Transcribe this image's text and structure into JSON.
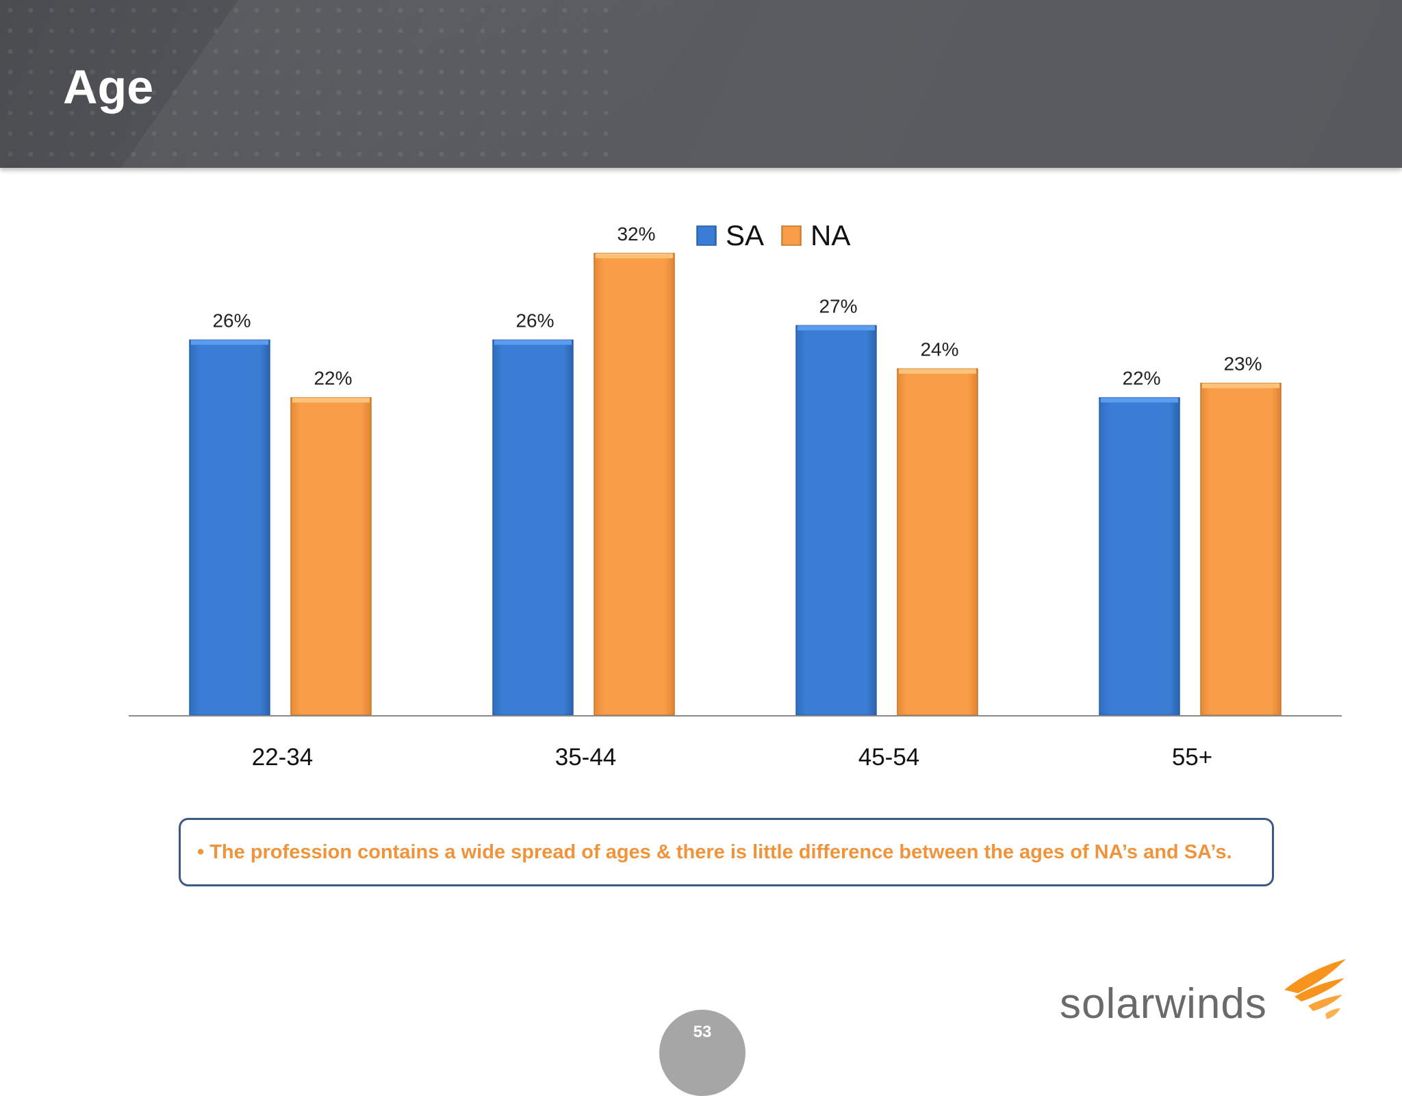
{
  "slide": {
    "title": "Age",
    "callout": "• The profession contains a wide spread of ages & there is little difference between the ages of NA’s and SA’s.",
    "page_number": "53",
    "logo_text": "solarwinds",
    "colors": {
      "sa": "#3a7dd4",
      "na": "#f99d48",
      "callout_text": "#f0943c",
      "callout_border": "#3b5a86"
    }
  },
  "chart_data": {
    "type": "bar",
    "title": "",
    "xlabel": "",
    "ylabel": "",
    "categories": [
      "22-34",
      "35-44",
      "45-54",
      "55+"
    ],
    "series": [
      {
        "name": "SA",
        "values": [
          26,
          26,
          27,
          22
        ],
        "labels": [
          "26%",
          "26%",
          "27%",
          "22%"
        ]
      },
      {
        "name": "NA",
        "values": [
          22,
          32,
          24,
          23
        ],
        "labels": [
          "22%",
          "32%",
          "24%",
          "23%"
        ]
      }
    ],
    "ylim": [
      0,
      32
    ],
    "grid": false,
    "legend_position": "top-center"
  }
}
